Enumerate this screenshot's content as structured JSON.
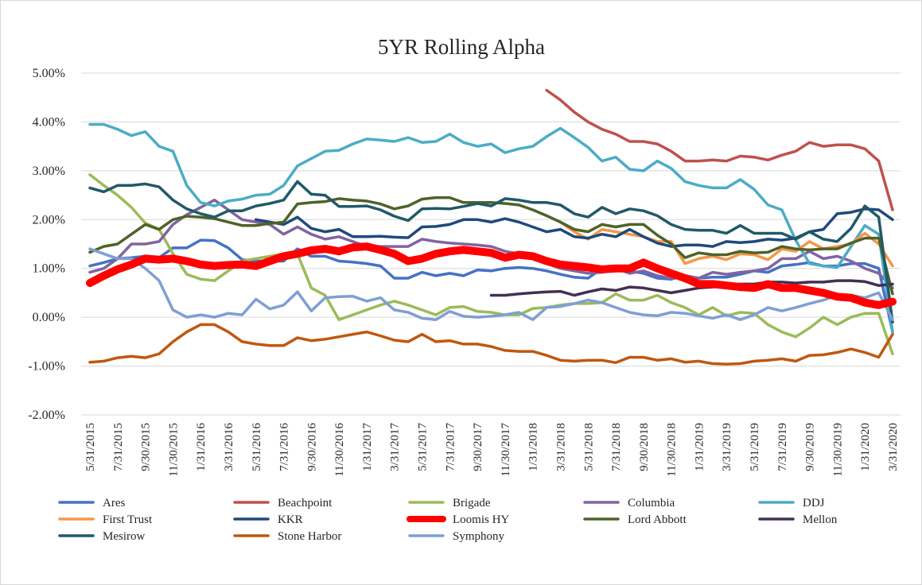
{
  "chart_data": {
    "type": "line",
    "title": "5YR Rolling Alpha",
    "categories": [
      "5/31/2015",
      null,
      "7/31/2015",
      null,
      "9/30/2015",
      null,
      "11/30/2015",
      null,
      "1/31/2016",
      null,
      "3/31/2016",
      null,
      "5/31/2016",
      null,
      "7/31/2016",
      null,
      "9/30/2016",
      null,
      "11/30/2016",
      null,
      "1/31/2017",
      null,
      "3/31/2017",
      null,
      "5/31/2017",
      null,
      "7/31/2017",
      null,
      "9/30/2017",
      null,
      "11/30/2017",
      null,
      "1/31/2018",
      null,
      "3/31/2018",
      null,
      "5/31/2018",
      null,
      "7/31/2018",
      null,
      "9/30/2018",
      null,
      "11/30/2018",
      null,
      "1/31/2019",
      null,
      "3/31/2019",
      null,
      "5/31/2019",
      null,
      "7/31/2019",
      null,
      "9/30/2019",
      null,
      "11/30/2019",
      null,
      "1/31/2020",
      null,
      "3/31/2020"
    ],
    "ylim": [
      -2,
      5
    ],
    "yticks": [
      {
        "value": -2,
        "label": "-2.00%"
      },
      {
        "value": -1,
        "label": "-1.00%"
      },
      {
        "value": 0,
        "label": "0.00%"
      },
      {
        "value": 1,
        "label": "1.00%"
      },
      {
        "value": 2,
        "label": "2.00%"
      },
      {
        "value": 3,
        "label": "3.00%"
      },
      {
        "value": 4,
        "label": "4.00%"
      },
      {
        "value": 5,
        "label": "5.00%"
      }
    ],
    "grid": true,
    "legend": "bottom",
    "series": [
      {
        "name": "Ares",
        "color": "#4472c4",
        "values": [
          1.05,
          1.12,
          1.2,
          1.22,
          1.25,
          1.22,
          1.42,
          1.42,
          1.58,
          1.57,
          1.42,
          1.18,
          1.15,
          1.15,
          1.15,
          1.4,
          1.25,
          1.25,
          1.15,
          1.13,
          1.1,
          1.05,
          0.8,
          0.8,
          0.92,
          0.85,
          0.9,
          0.85,
          0.97,
          0.95,
          1.0,
          1.02,
          1.0,
          0.95,
          0.88,
          0.82,
          0.8,
          1.0,
          0.95,
          0.95,
          0.9,
          0.8,
          0.78,
          0.85,
          0.8,
          0.82,
          0.82,
          0.88,
          0.95,
          0.92,
          1.05,
          1.08,
          1.12,
          1.05,
          1.05,
          1.1,
          1.1,
          1.0,
          -0.3
        ]
      },
      {
        "name": "Beachpoint",
        "color": "#c0504d",
        "values": [
          null,
          null,
          null,
          null,
          null,
          null,
          null,
          null,
          null,
          null,
          null,
          null,
          null,
          null,
          null,
          null,
          null,
          null,
          null,
          null,
          null,
          null,
          null,
          null,
          null,
          null,
          null,
          null,
          null,
          null,
          null,
          null,
          null,
          4.65,
          4.45,
          4.2,
          4.0,
          3.85,
          3.75,
          3.6,
          3.6,
          3.55,
          3.4,
          3.2,
          3.2,
          3.22,
          3.2,
          3.3,
          3.28,
          3.22,
          3.32,
          3.4,
          3.58,
          3.5,
          3.53,
          3.53,
          3.45,
          3.2,
          2.2
        ]
      },
      {
        "name": "Brigade",
        "color": "#9bbb59",
        "values": [
          2.92,
          2.7,
          2.5,
          2.25,
          1.93,
          1.8,
          1.3,
          0.88,
          0.78,
          0.75,
          0.95,
          1.15,
          1.2,
          1.25,
          1.3,
          1.3,
          0.6,
          0.45,
          -0.05,
          0.05,
          0.15,
          0.25,
          0.33,
          0.25,
          0.15,
          0.05,
          0.2,
          0.22,
          0.12,
          0.1,
          0.05,
          0.05,
          0.18,
          0.2,
          0.25,
          0.28,
          0.28,
          0.3,
          0.48,
          0.35,
          0.35,
          0.45,
          0.3,
          0.2,
          0.05,
          0.2,
          0.03,
          0.1,
          0.08,
          -0.15,
          -0.3,
          -0.4,
          -0.22,
          0.0,
          -0.15,
          0.0,
          0.08,
          0.08,
          -0.75
        ]
      },
      {
        "name": "Columbia",
        "color": "#8064a2",
        "values": [
          0.92,
          1.0,
          1.2,
          1.5,
          1.5,
          1.55,
          1.9,
          2.1,
          2.25,
          2.4,
          2.2,
          2.0,
          1.95,
          1.9,
          1.7,
          1.85,
          1.7,
          1.6,
          1.65,
          1.55,
          1.45,
          1.45,
          1.45,
          1.45,
          1.6,
          1.55,
          1.52,
          1.5,
          1.48,
          1.45,
          1.35,
          1.3,
          1.25,
          1.1,
          1.0,
          0.95,
          0.9,
          0.92,
          1.0,
          0.9,
          0.95,
          0.85,
          0.8,
          0.85,
          0.8,
          0.92,
          0.88,
          0.92,
          0.95,
          1.0,
          1.2,
          1.2,
          1.35,
          1.2,
          1.25,
          1.15,
          1.0,
          0.9,
          0.6
        ]
      },
      {
        "name": "DDJ",
        "color": "#4bacc6",
        "values": [
          3.95,
          3.95,
          3.85,
          3.72,
          3.8,
          3.5,
          3.4,
          2.7,
          2.35,
          2.28,
          2.38,
          2.42,
          2.5,
          2.52,
          2.7,
          3.1,
          3.25,
          3.4,
          3.42,
          3.55,
          3.65,
          3.63,
          3.6,
          3.68,
          3.58,
          3.6,
          3.75,
          3.58,
          3.5,
          3.55,
          3.37,
          3.45,
          3.5,
          3.7,
          3.87,
          3.68,
          3.48,
          3.2,
          3.28,
          3.03,
          3.0,
          3.2,
          3.05,
          2.78,
          2.7,
          2.65,
          2.65,
          2.82,
          2.62,
          2.3,
          2.2,
          1.58,
          1.1,
          1.05,
          1.02,
          1.45,
          1.88,
          1.7,
          -0.3
        ]
      },
      {
        "name": "First Trust",
        "color": "#f79646",
        "values": [
          null,
          null,
          null,
          null,
          null,
          null,
          null,
          null,
          null,
          null,
          null,
          null,
          null,
          null,
          null,
          null,
          null,
          null,
          null,
          null,
          null,
          null,
          null,
          null,
          null,
          null,
          null,
          null,
          null,
          null,
          null,
          null,
          null,
          null,
          1.95,
          1.75,
          1.6,
          1.8,
          1.75,
          1.7,
          1.65,
          1.55,
          1.55,
          1.1,
          1.2,
          1.25,
          1.18,
          1.3,
          1.28,
          1.18,
          1.4,
          1.35,
          1.55,
          1.4,
          1.45,
          1.5,
          1.72,
          1.5,
          1.05
        ]
      },
      {
        "name": "KKR",
        "color": "#1f497d",
        "values": [
          null,
          null,
          null,
          null,
          null,
          null,
          null,
          null,
          null,
          null,
          null,
          null,
          2.0,
          1.95,
          1.9,
          2.05,
          1.82,
          1.75,
          1.8,
          1.65,
          1.65,
          1.66,
          1.64,
          1.63,
          1.85,
          1.86,
          1.9,
          2.0,
          2.0,
          1.95,
          2.02,
          1.95,
          1.85,
          1.75,
          1.8,
          1.65,
          1.62,
          1.7,
          1.65,
          1.8,
          1.65,
          1.52,
          1.45,
          1.48,
          1.48,
          1.45,
          1.55,
          1.53,
          1.55,
          1.6,
          1.58,
          1.62,
          1.75,
          1.8,
          2.12,
          2.15,
          2.22,
          2.2,
          2.0
        ]
      },
      {
        "name": "Loomis HY",
        "color": "#ff0000",
        "values": [
          0.7,
          0.85,
          0.98,
          1.08,
          1.2,
          1.18,
          1.2,
          1.15,
          1.08,
          1.05,
          1.07,
          1.08,
          1.05,
          1.15,
          1.25,
          1.3,
          1.37,
          1.4,
          1.35,
          1.43,
          1.45,
          1.38,
          1.3,
          1.15,
          1.2,
          1.3,
          1.35,
          1.38,
          1.35,
          1.32,
          1.22,
          1.28,
          1.25,
          1.15,
          1.08,
          1.05,
          1.02,
          0.98,
          1.0,
          1.0,
          1.12,
          1.0,
          0.9,
          0.8,
          0.68,
          0.68,
          0.65,
          0.62,
          0.6,
          0.68,
          0.6,
          0.6,
          0.55,
          0.5,
          0.42,
          0.4,
          0.3,
          0.25,
          0.32
        ]
      },
      {
        "name": "Lord Abbott",
        "color": "#4f6228",
        "values": [
          1.33,
          1.45,
          1.5,
          1.7,
          1.9,
          1.8,
          2.0,
          2.07,
          2.05,
          2.02,
          1.95,
          1.88,
          1.88,
          1.92,
          1.95,
          2.32,
          2.35,
          2.37,
          2.43,
          2.4,
          2.38,
          2.32,
          2.22,
          2.28,
          2.42,
          2.45,
          2.45,
          2.35,
          2.35,
          2.35,
          2.33,
          2.3,
          2.2,
          2.08,
          1.95,
          1.8,
          1.75,
          1.9,
          1.85,
          1.9,
          1.9,
          1.68,
          1.5,
          1.22,
          1.32,
          1.28,
          1.28,
          1.35,
          1.32,
          1.33,
          1.45,
          1.4,
          1.38,
          1.4,
          1.4,
          1.52,
          1.62,
          1.62,
          0.48
        ]
      },
      {
        "name": "Mellon",
        "color": "#403152",
        "values": [
          null,
          null,
          null,
          null,
          null,
          null,
          null,
          null,
          null,
          null,
          null,
          null,
          null,
          null,
          null,
          null,
          null,
          null,
          null,
          null,
          null,
          null,
          null,
          null,
          null,
          null,
          null,
          null,
          null,
          0.45,
          0.45,
          0.48,
          0.5,
          0.52,
          0.53,
          0.45,
          0.52,
          0.58,
          0.55,
          0.62,
          0.6,
          0.55,
          0.5,
          0.55,
          0.6,
          0.62,
          0.65,
          0.68,
          0.68,
          0.72,
          0.72,
          0.7,
          0.72,
          0.72,
          0.75,
          0.75,
          0.73,
          0.65,
          0.68
        ]
      },
      {
        "name": "Mesirow",
        "color": "#215968",
        "values": [
          2.65,
          2.57,
          2.7,
          2.7,
          2.73,
          2.67,
          2.4,
          2.22,
          2.12,
          2.05,
          2.18,
          2.18,
          2.28,
          2.33,
          2.4,
          2.78,
          2.52,
          2.5,
          2.27,
          2.27,
          2.28,
          2.2,
          2.07,
          1.98,
          2.22,
          2.23,
          2.22,
          2.27,
          2.33,
          2.28,
          2.43,
          2.4,
          2.35,
          2.35,
          2.3,
          2.12,
          2.05,
          2.25,
          2.12,
          2.22,
          2.18,
          2.08,
          1.9,
          1.8,
          1.78,
          1.78,
          1.72,
          1.88,
          1.72,
          1.72,
          1.72,
          1.6,
          1.75,
          1.6,
          1.55,
          1.82,
          2.28,
          2.05,
          -0.1
        ]
      },
      {
        "name": "Stone Harbor",
        "color": "#c0580f",
        "values": [
          -0.92,
          -0.9,
          -0.83,
          -0.8,
          -0.83,
          -0.75,
          -0.5,
          -0.3,
          -0.15,
          -0.15,
          -0.3,
          -0.5,
          -0.55,
          -0.58,
          -0.58,
          -0.42,
          -0.48,
          -0.45,
          -0.4,
          -0.35,
          -0.3,
          -0.38,
          -0.47,
          -0.5,
          -0.35,
          -0.5,
          -0.48,
          -0.55,
          -0.55,
          -0.6,
          -0.68,
          -0.7,
          -0.7,
          -0.78,
          -0.88,
          -0.9,
          -0.88,
          -0.88,
          -0.93,
          -0.82,
          -0.82,
          -0.88,
          -0.85,
          -0.92,
          -0.9,
          -0.95,
          -0.96,
          -0.95,
          -0.9,
          -0.88,
          -0.85,
          -0.9,
          -0.78,
          -0.77,
          -0.72,
          -0.65,
          -0.72,
          -0.82,
          -0.35
        ]
      },
      {
        "name": "Symphony",
        "color": "#7e9fd4",
        "values": [
          1.4,
          1.3,
          1.2,
          1.2,
          1.0,
          0.75,
          0.15,
          0.0,
          0.05,
          0.0,
          0.08,
          0.05,
          0.37,
          0.17,
          0.25,
          0.52,
          0.13,
          0.4,
          0.42,
          0.43,
          0.33,
          0.4,
          0.15,
          0.1,
          -0.02,
          -0.05,
          0.12,
          0.02,
          0.0,
          0.02,
          0.05,
          0.1,
          -0.05,
          0.2,
          0.22,
          0.28,
          0.35,
          0.3,
          0.2,
          0.1,
          0.05,
          0.03,
          0.1,
          0.08,
          0.03,
          -0.02,
          0.05,
          -0.05,
          0.05,
          0.2,
          0.13,
          0.2,
          0.28,
          0.35,
          0.45,
          0.45,
          0.4,
          0.5,
          -0.05
        ]
      }
    ]
  }
}
